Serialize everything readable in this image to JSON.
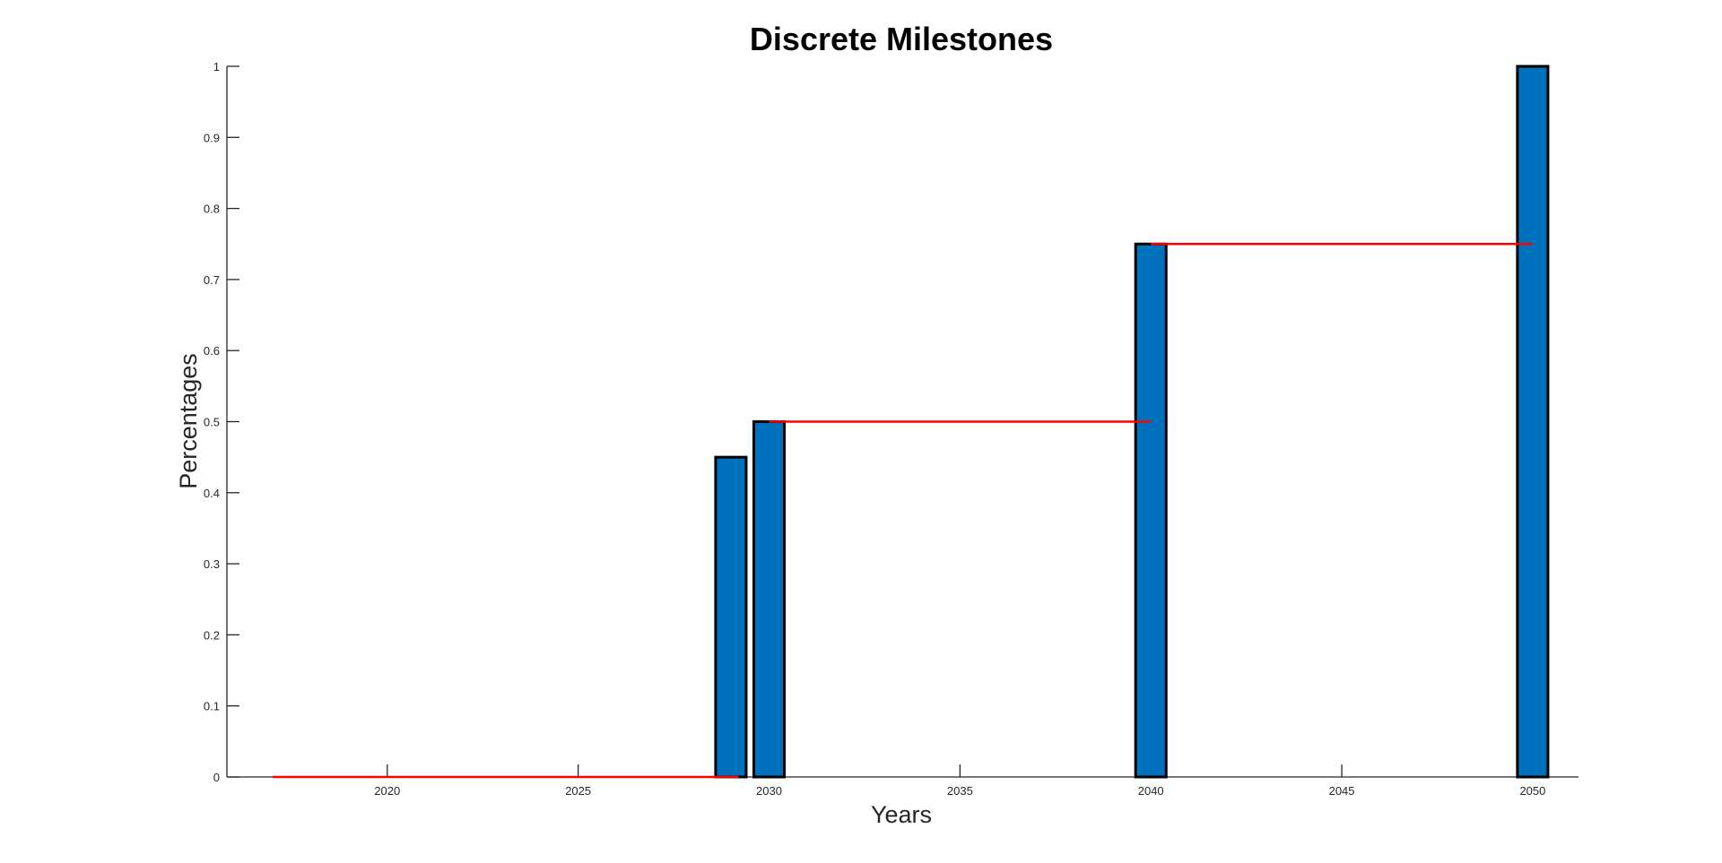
{
  "chart_data": {
    "type": "bar",
    "title": "Discrete Milestones",
    "xlabel": "Years",
    "ylabel": "Percentages",
    "xlim": [
      2015.8,
      2051.2
    ],
    "ylim": [
      0,
      1
    ],
    "xticks": [
      2020,
      2025,
      2030,
      2035,
      2040,
      2045,
      2050
    ],
    "xtick_labels": [
      "2020",
      "2025",
      "2030",
      "2035",
      "2040",
      "2045",
      "2050"
    ],
    "yticks": [
      0,
      0.1,
      0.2,
      0.3,
      0.4,
      0.5,
      0.6,
      0.7,
      0.8,
      0.9,
      1
    ],
    "ytick_labels": [
      "0",
      "0.1",
      "0.2",
      "0.3",
      "0.4",
      "0.5",
      "0.6",
      "0.7",
      "0.8",
      "0.9",
      "1"
    ],
    "grid": false,
    "bar_color": "#0072BD",
    "bar_edge_color": "#000000",
    "bar_width_years": 0.8,
    "bars": [
      {
        "x": 2029,
        "y": 0.45
      },
      {
        "x": 2030,
        "y": 0.5
      },
      {
        "x": 2040,
        "y": 0.75
      },
      {
        "x": 2050,
        "y": 1.0
      }
    ],
    "line_color": "#ff0000",
    "step_segments": [
      {
        "x": [
          2017,
          2029.2
        ],
        "y": 0
      },
      {
        "x": [
          2030,
          2040
        ],
        "y": 0.5
      },
      {
        "x": [
          2040,
          2050
        ],
        "y": 0.75
      }
    ]
  }
}
